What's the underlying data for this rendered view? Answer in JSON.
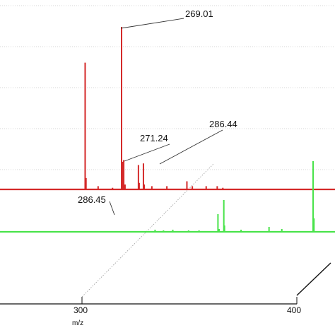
{
  "chart_data": {
    "type": "line",
    "xlabel": "m/z",
    "ylabel": "",
    "x_ticks": [
      300,
      400
    ],
    "x_tick_labels": [
      "300",
      "400"
    ],
    "xlim": [
      220,
      420
    ],
    "grid": "dotted horizontal",
    "series": [
      {
        "color": "#d42a2a",
        "peaks": [
          {
            "x": 231.4,
            "y": 0.78
          },
          {
            "x": 232.3,
            "y": 0.07
          },
          {
            "x": 244.8,
            "y": 0.02
          },
          {
            "x": 259.7,
            "y": 0.01
          },
          {
            "x": 269.01,
            "y": 1.0
          },
          {
            "x": 270.2,
            "y": 0.17
          },
          {
            "x": 271.24,
            "y": 0.18
          },
          {
            "x": 272.6,
            "y": 0.03
          },
          {
            "x": 286.44,
            "y": 0.15
          },
          {
            "x": 287.2,
            "y": 0.04
          },
          {
            "x": 291.6,
            "y": 0.16
          },
          {
            "x": 292.4,
            "y": 0.03
          },
          {
            "x": 300.3,
            "y": 0.02
          },
          {
            "x": 315.8,
            "y": 0.02
          },
          {
            "x": 336.5,
            "y": 0.05
          },
          {
            "x": 342.1,
            "y": 0.02
          },
          {
            "x": 356.4,
            "y": 0.02
          },
          {
            "x": 367.8,
            "y": 0.02
          },
          {
            "x": 373.6,
            "y": 0.01
          }
        ]
      },
      {
        "color": "#49e34a",
        "peaks": [
          {
            "x": 221.5,
            "y": 0.03
          },
          {
            "x": 230.2,
            "y": 0.02
          },
          {
            "x": 239.8,
            "y": 0.03
          },
          {
            "x": 256.1,
            "y": 0.02
          },
          {
            "x": 266.9,
            "y": 0.02
          },
          {
            "x": 283.4,
            "y": 0.01
          },
          {
            "x": 286.45,
            "y": 0.25
          },
          {
            "x": 287.6,
            "y": 0.04
          },
          {
            "x": 292.5,
            "y": 0.45
          },
          {
            "x": 293.2,
            "y": 0.09
          },
          {
            "x": 310.3,
            "y": 0.03
          },
          {
            "x": 339.2,
            "y": 0.07
          },
          {
            "x": 352.4,
            "y": 0.04
          },
          {
            "x": 384.7,
            "y": 1.0
          },
          {
            "x": 385.6,
            "y": 0.19
          }
        ]
      }
    ],
    "annotations": [
      "269.01",
      "271.24",
      "286.44",
      "286.45"
    ]
  }
}
